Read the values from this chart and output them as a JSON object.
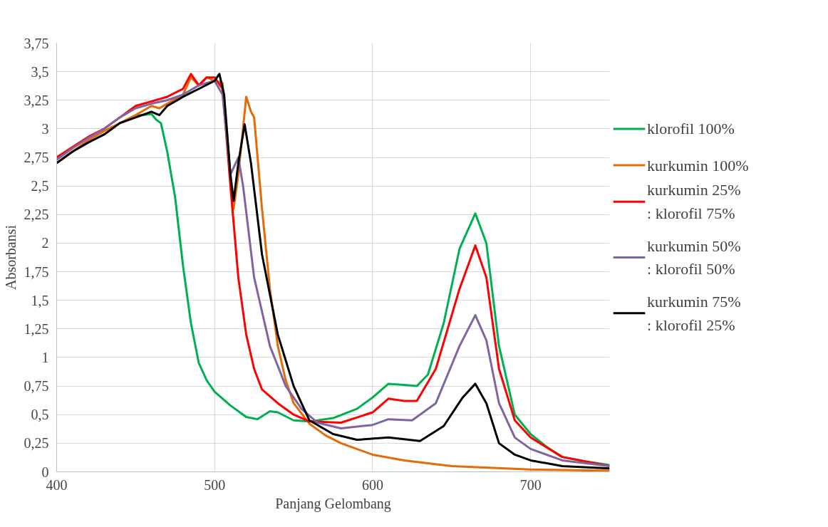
{
  "chart_data": {
    "type": "line",
    "xlabel": "Panjang Gelombang",
    "ylabel": "Absorbansi",
    "xlim": [
      400,
      750
    ],
    "xticks": [
      400,
      500,
      600,
      700
    ],
    "ylim": [
      0,
      3.75
    ],
    "yticks": [
      0,
      {
        "value": 0.25,
        "label": "0,25"
      },
      {
        "value": 0.5,
        "label": "0,5"
      },
      {
        "value": 0.75,
        "label": "0,75"
      },
      1,
      {
        "value": 1.25,
        "label": "1,25"
      },
      {
        "value": 1.5,
        "label": "1,5"
      },
      {
        "value": 1.75,
        "label": "1,75"
      },
      2,
      {
        "value": 2.25,
        "label": "2,25"
      },
      {
        "value": 2.5,
        "label": "2,5"
      },
      {
        "value": 2.75,
        "label": "2,75"
      },
      3,
      {
        "value": 3.25,
        "label": "3,25"
      },
      {
        "value": 3.5,
        "label": "3,5"
      },
      {
        "value": 3.75,
        "label": "3,75"
      }
    ],
    "grid": true,
    "legend": "right",
    "marker": "none",
    "line_style": "solid",
    "series": [
      {
        "name": "klorofil 100%",
        "color": "#00b050",
        "x": [
          450,
          455,
          460,
          463,
          466,
          470,
          475,
          480,
          485,
          490,
          495,
          500,
          510,
          520,
          527,
          535,
          540,
          550,
          560,
          575,
          590,
          600,
          610,
          620,
          628,
          635,
          645,
          655,
          665,
          672,
          680,
          690,
          700,
          710,
          720,
          735,
          750
        ],
        "values": [
          3.12,
          3.12,
          3.13,
          3.08,
          3.05,
          2.8,
          2.4,
          1.8,
          1.3,
          0.95,
          0.8,
          0.7,
          0.58,
          0.48,
          0.46,
          0.53,
          0.52,
          0.45,
          0.44,
          0.47,
          0.55,
          0.65,
          0.77,
          0.76,
          0.75,
          0.85,
          1.3,
          1.95,
          2.26,
          2.0,
          1.1,
          0.5,
          0.33,
          0.22,
          0.13,
          0.09,
          0.06
        ]
      },
      {
        "name": "kurkumin 100%",
        "color": "#e36c09",
        "x": [
          400,
          410,
          420,
          430,
          440,
          450,
          460,
          465,
          470,
          480,
          485,
          490,
          495,
          500,
          505,
          510,
          512,
          515,
          520,
          523,
          525,
          530,
          535,
          540,
          545,
          550,
          560,
          570,
          580,
          600,
          620,
          650,
          700,
          750
        ],
        "values": [
          2.7,
          2.8,
          2.9,
          2.98,
          3.05,
          3.12,
          3.2,
          3.18,
          3.22,
          3.3,
          3.45,
          3.38,
          3.45,
          3.42,
          3.4,
          2.6,
          2.3,
          2.6,
          3.28,
          3.15,
          3.1,
          2.3,
          1.6,
          1.1,
          0.8,
          0.6,
          0.42,
          0.32,
          0.25,
          0.15,
          0.1,
          0.05,
          0.02,
          0.01
        ]
      },
      {
        "name": "kurkumin 25% : klorofil 75%",
        "color": "#ff0000",
        "x": [
          400,
          410,
          420,
          430,
          440,
          450,
          460,
          470,
          480,
          485,
          490,
          495,
          500,
          505,
          510,
          515,
          520,
          525,
          530,
          540,
          550,
          560,
          580,
          600,
          610,
          620,
          628,
          640,
          655,
          665,
          672,
          680,
          690,
          700,
          720,
          750
        ],
        "values": [
          2.75,
          2.84,
          2.93,
          3.0,
          3.1,
          3.2,
          3.24,
          3.28,
          3.35,
          3.48,
          3.38,
          3.45,
          3.45,
          3.35,
          2.5,
          1.7,
          1.2,
          0.9,
          0.72,
          0.6,
          0.5,
          0.44,
          0.43,
          0.52,
          0.64,
          0.62,
          0.62,
          0.9,
          1.6,
          1.98,
          1.7,
          0.9,
          0.45,
          0.3,
          0.13,
          0.05
        ]
      },
      {
        "name": "kurkumin 50% : klorofil 50%",
        "color": "#8064a2",
        "x": [
          400,
          410,
          420,
          430,
          440,
          450,
          460,
          470,
          480,
          490,
          500,
          505,
          510,
          515,
          518,
          525,
          535,
          545,
          555,
          565,
          580,
          600,
          610,
          625,
          640,
          655,
          665,
          672,
          680,
          690,
          700,
          720,
          750
        ],
        "values": [
          2.73,
          2.83,
          2.92,
          3.0,
          3.1,
          3.18,
          3.22,
          3.25,
          3.3,
          3.38,
          3.42,
          3.3,
          2.6,
          2.75,
          2.5,
          1.7,
          1.1,
          0.75,
          0.55,
          0.43,
          0.38,
          0.41,
          0.46,
          0.45,
          0.6,
          1.1,
          1.37,
          1.15,
          0.6,
          0.3,
          0.2,
          0.1,
          0.05
        ]
      },
      {
        "name": "kurkumin 75% : klorofil 25%",
        "color": "#000000",
        "x": [
          400,
          410,
          420,
          430,
          440,
          450,
          460,
          465,
          470,
          480,
          490,
          500,
          503,
          506,
          510,
          512,
          515,
          519,
          523,
          530,
          540,
          550,
          560,
          575,
          590,
          610,
          630,
          645,
          657,
          665,
          672,
          680,
          690,
          700,
          720,
          750
        ],
        "values": [
          2.7,
          2.8,
          2.88,
          2.95,
          3.05,
          3.1,
          3.15,
          3.12,
          3.2,
          3.28,
          3.35,
          3.42,
          3.48,
          3.3,
          2.6,
          2.37,
          2.7,
          3.04,
          2.7,
          1.9,
          1.2,
          0.75,
          0.45,
          0.33,
          0.28,
          0.3,
          0.27,
          0.4,
          0.65,
          0.77,
          0.6,
          0.25,
          0.15,
          0.1,
          0.05,
          0.03
        ]
      }
    ]
  }
}
